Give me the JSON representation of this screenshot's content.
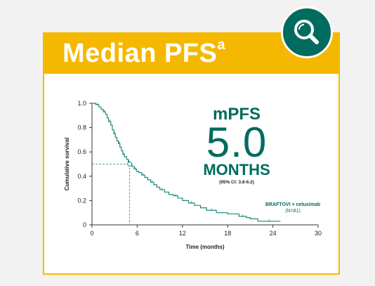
{
  "title": "Median PFS",
  "title_superscript": "a",
  "badge_icon": "magnifier-icon",
  "colors": {
    "accent": "#f5b800",
    "brand": "#006b5e",
    "curve": "#1b8a7a"
  },
  "callout": {
    "label": "mPFS",
    "value": "5.0",
    "unit": "MONTHS",
    "ci": "(95% CI: 3.8-6.2)"
  },
  "series_label": {
    "name": "BRAFTOVI + cetuximab",
    "n": "(N=81)"
  },
  "chart_data": {
    "type": "line",
    "step": true,
    "xlabel": "Time (months)",
    "ylabel": "Cumulative survival",
    "xlim": [
      0,
      30
    ],
    "ylim": [
      0,
      1.0
    ],
    "xticks": [
      0,
      6,
      12,
      18,
      24,
      30
    ],
    "yticks": [
      0,
      0.2,
      0.4,
      0.6,
      0.8,
      1.0
    ],
    "ytick_labels": [
      "0",
      "0.2",
      "0.4",
      "0.6",
      "0.8",
      "1.0"
    ],
    "median": {
      "x": 5.0,
      "y": 0.5
    },
    "series": [
      {
        "name": "BRAFTOVI + cetuximab",
        "x": [
          0,
          0.5,
          0.9,
          1.2,
          1.5,
          1.8,
          2.0,
          2.2,
          2.5,
          2.7,
          2.9,
          3.1,
          3.3,
          3.5,
          3.7,
          3.9,
          4.1,
          4.3,
          4.6,
          4.8,
          5.0,
          5.3,
          5.6,
          5.9,
          6.2,
          6.6,
          7.0,
          7.4,
          7.8,
          8.2,
          8.6,
          9.0,
          9.6,
          10.2,
          10.8,
          11.4,
          12.0,
          12.8,
          13.6,
          14.4,
          15.2,
          16.5,
          18.0,
          19.5,
          20.5,
          21.0,
          22.0,
          25.0
        ],
        "y": [
          1.0,
          0.99,
          0.97,
          0.95,
          0.93,
          0.91,
          0.88,
          0.85,
          0.82,
          0.78,
          0.75,
          0.72,
          0.69,
          0.67,
          0.64,
          0.61,
          0.58,
          0.56,
          0.54,
          0.52,
          0.5,
          0.48,
          0.46,
          0.44,
          0.43,
          0.41,
          0.39,
          0.37,
          0.35,
          0.33,
          0.31,
          0.29,
          0.27,
          0.25,
          0.24,
          0.22,
          0.2,
          0.18,
          0.16,
          0.14,
          0.12,
          0.1,
          0.09,
          0.07,
          0.06,
          0.05,
          0.03,
          0.03
        ]
      }
    ]
  }
}
